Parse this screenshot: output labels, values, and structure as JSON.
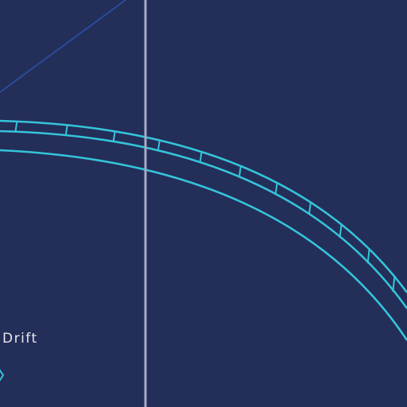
{
  "diagram": {
    "label": "Drift",
    "colors": {
      "background": "#232e59",
      "track": "#35c4d9",
      "guide": "#a8abc3",
      "diagonal": "#2a4c9a",
      "label": "#e7e8ea",
      "marker": "#35c4d9"
    },
    "icons": {
      "track_ties": "rail-tie-marks",
      "marker": "chevron-marker-icon"
    }
  }
}
